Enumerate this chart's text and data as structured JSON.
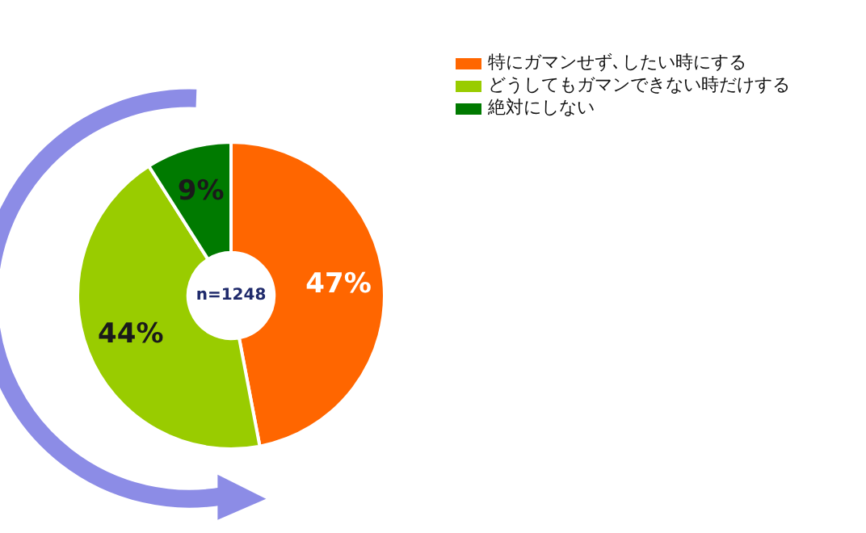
{
  "chart_data": {
    "type": "donut",
    "categories": [
      "特にガマンせず､したい時にする",
      "どうしてもガマンできない時だけする",
      "絶対にしない"
    ],
    "values": [
      47,
      44,
      9
    ],
    "colors": [
      "#ff6600",
      "#99cc00",
      "#007a00"
    ],
    "value_labels": [
      "47%",
      "44%",
      "9%"
    ],
    "annotations": [
      "n=1248"
    ],
    "legend": "top right"
  }
}
